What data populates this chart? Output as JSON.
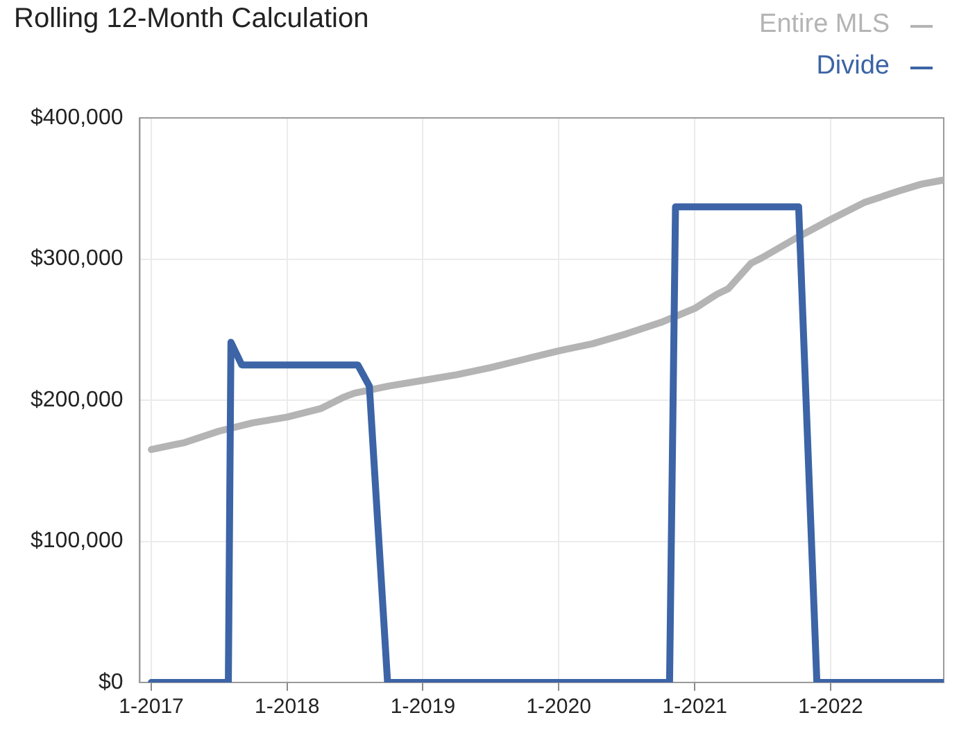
{
  "chart_data": {
    "type": "line",
    "title": "Rolling 12-Month Calculation",
    "legend": "top right",
    "grid": true,
    "xlim": [
      "2016-12",
      "2022-11"
    ],
    "xticks": [
      {
        "value": "2017-01",
        "label": "1-2017"
      },
      {
        "value": "2018-01",
        "label": "1-2018"
      },
      {
        "value": "2019-01",
        "label": "1-2019"
      },
      {
        "value": "2020-01",
        "label": "1-2020"
      },
      {
        "value": "2021-01",
        "label": "1-2021"
      },
      {
        "value": "2022-01",
        "label": "1-2022"
      }
    ],
    "ylim": [
      0,
      400000
    ],
    "yticks": [
      {
        "value": 0,
        "label": "$0"
      },
      {
        "value": 100000,
        "label": "$100,000"
      },
      {
        "value": 200000,
        "label": "$200,000"
      },
      {
        "value": 300000,
        "label": "$300,000"
      },
      {
        "value": 400000,
        "label": "$400,000"
      }
    ],
    "series": [
      {
        "name": "Entire MLS",
        "color": "#b4b4b4",
        "x": [
          "2017-01",
          "2017-04",
          "2017-07",
          "2017-10",
          "2018-01",
          "2018-04",
          "2018-06",
          "2018-07",
          "2018-10",
          "2019-01",
          "2019-04",
          "2019-07",
          "2019-10",
          "2020-01",
          "2020-04",
          "2020-07",
          "2020-10",
          "2021-01",
          "2021-03",
          "2021-04",
          "2021-06",
          "2021-07",
          "2021-10",
          "2022-01",
          "2022-04",
          "2022-07",
          "2022-09",
          "2022-11"
        ],
        "values": [
          165000,
          170000,
          178000,
          184000,
          188000,
          194000,
          202000,
          205000,
          210000,
          214000,
          218000,
          223000,
          229000,
          235000,
          240000,
          247000,
          255000,
          265000,
          275000,
          279000,
          297000,
          301000,
          315000,
          328000,
          340000,
          348000,
          353000,
          356000
        ]
      },
      {
        "name": "Divide",
        "color": "#3c64a6",
        "x": [
          "2017-01",
          "2017-07-27",
          "2017-08-03",
          "2017-09-01",
          "2018-07-10",
          "2018-08-10",
          "2018-09-28",
          "2020-10-25",
          "2020-11-10",
          "2021-10-07",
          "2021-11-25",
          "2022-11"
        ],
        "values": [
          0,
          0,
          241000,
          225000,
          225000,
          210000,
          0,
          0,
          337000,
          337000,
          0,
          0
        ]
      }
    ]
  }
}
